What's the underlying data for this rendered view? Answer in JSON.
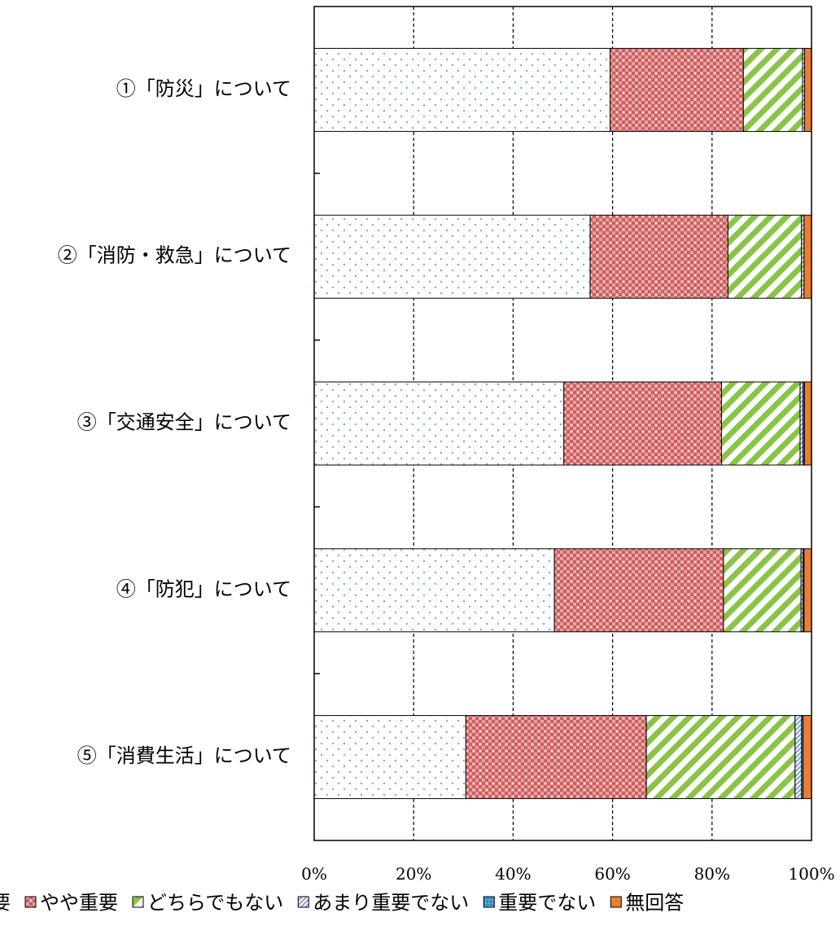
{
  "chart_data": {
    "type": "bar",
    "orientation": "horizontal",
    "stacked": "percent",
    "categories": [
      "①「防災」について",
      "②「消防・救急」について",
      "③「交通安全」について",
      "④「防犯」について",
      "⑤「消費生活」について"
    ],
    "series": [
      {
        "name": "重要",
        "values": [
          59.5,
          55.5,
          50.2,
          48.3,
          30.5
        ],
        "color": "#bdd7ee"
      },
      {
        "name": "やや重要",
        "values": [
          26.8,
          27.7,
          31.7,
          34.0,
          36.3
        ],
        "color": "#e06666"
      },
      {
        "name": "どちらでもない",
        "values": [
          11.9,
          14.8,
          15.8,
          15.6,
          29.9
        ],
        "color": "#8bc34a"
      },
      {
        "name": "あまり重要でない",
        "values": [
          0.4,
          0.5,
          0.6,
          0.4,
          1.3
        ],
        "color": "#9aa6d6"
      },
      {
        "name": "重要でない",
        "values": [
          0.0,
          0.0,
          0.3,
          0.2,
          0.3
        ],
        "color": "#2f8fc2"
      },
      {
        "name": "無回答",
        "values": [
          1.4,
          1.5,
          1.4,
          1.5,
          1.7
        ],
        "color": "#ed7d31"
      }
    ],
    "xlim": [
      0,
      100
    ],
    "x_ticks": [
      "0%",
      "20%",
      "40%",
      "60%",
      "80%",
      "100%"
    ],
    "grid": "vertical-dashed",
    "legend_position": "bottom",
    "legend_labels": [
      "重要",
      "やや重要",
      "どちらでもない",
      "あまり重要でない",
      "重要でない",
      "無回答"
    ]
  }
}
